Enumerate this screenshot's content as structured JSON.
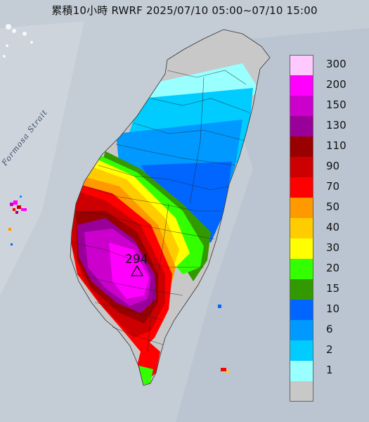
{
  "title": "累積10小時 RWRF 2025/07/10 05:00~07/10 15:00",
  "strait_label": "Formosa Strait",
  "max_value": "294",
  "legend": [
    {
      "label": "300",
      "color": "#ffc8ff"
    },
    {
      "label": "200",
      "color": "#ff00ff"
    },
    {
      "label": "150",
      "color": "#cc00cc"
    },
    {
      "label": "130",
      "color": "#990099"
    },
    {
      "label": "110",
      "color": "#990000"
    },
    {
      "label": "90",
      "color": "#cc0000"
    },
    {
      "label": "70",
      "color": "#ff0000"
    },
    {
      "label": "50",
      "color": "#ff9900"
    },
    {
      "label": "40",
      "color": "#ffcc00"
    },
    {
      "label": "30",
      "color": "#ffff00"
    },
    {
      "label": "20",
      "color": "#33ff00"
    },
    {
      "label": "15",
      "color": "#339900"
    },
    {
      "label": "10",
      "color": "#0066ff"
    },
    {
      "label": "6",
      "color": "#0099ff"
    },
    {
      "label": "2",
      "color": "#00ccff"
    },
    {
      "label": "1",
      "color": "#99ffff"
    },
    {
      "label": "",
      "color": "#c8c8c8"
    }
  ]
}
